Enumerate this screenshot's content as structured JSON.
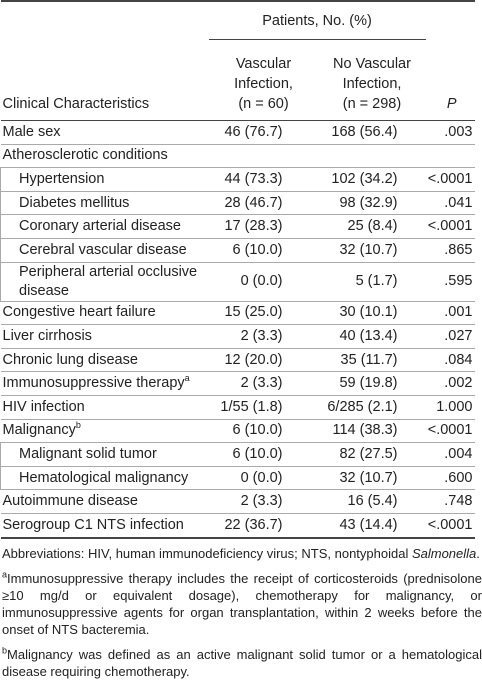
{
  "header": {
    "group_title": "Patients, No. (%)",
    "columns": [
      [
        "Clinical Characteristics"
      ],
      [
        "Vascular",
        "Infection,",
        "(n = 60)"
      ],
      [
        "No Vascular",
        "Infection,",
        "(n = 298)"
      ],
      [
        "P"
      ]
    ]
  },
  "table": {
    "rows": [
      {
        "label": "Male sex",
        "indent": false,
        "cells": [
          "46 (76.7)",
          "168 (56.4)",
          ".003"
        ]
      },
      {
        "label": "Atherosclerotic conditions",
        "indent": false,
        "cells": []
      },
      {
        "label": "Hypertension",
        "indent": true,
        "cells": [
          "44 (73.3)",
          "102 (34.2)",
          "<.0001"
        ]
      },
      {
        "label": "Diabetes mellitus",
        "indent": true,
        "cells": [
          "28 (46.7)",
          "98 (32.9)",
          ".041"
        ]
      },
      {
        "label": "Coronary arterial disease",
        "indent": true,
        "cells": [
          "17 (28.3)",
          "25 (8.4)",
          "<.0001"
        ]
      },
      {
        "label": "Cerebral vascular disease",
        "indent": true,
        "cells": [
          "6 (10.0)",
          "32 (10.7)",
          ".865"
        ]
      },
      {
        "label": "Peripheral arterial occlusive disease",
        "indent": true,
        "cells": [
          "0 (0.0)",
          "5 (1.7)",
          ".595"
        ]
      },
      {
        "label": "Congestive heart failure",
        "indent": false,
        "cells": [
          "15 (25.0)",
          "30 (10.1)",
          ".001"
        ]
      },
      {
        "label": "Liver cirrhosis",
        "indent": false,
        "cells": [
          "2 (3.3)",
          "40 (13.4)",
          ".027"
        ]
      },
      {
        "label": "Chronic lung disease",
        "indent": false,
        "cells": [
          "12 (20.0)",
          "35 (11.7)",
          ".084"
        ]
      },
      {
        "label": "Immunosuppressive therapy",
        "sup": "a",
        "indent": false,
        "cells": [
          "2 (3.3)",
          "59 (19.8)",
          ".002"
        ]
      },
      {
        "label": "HIV infection",
        "indent": false,
        "cells": [
          "1/55 (1.8)",
          "6/285 (2.1)",
          "1.000"
        ]
      },
      {
        "label": "Malignancy",
        "sup": "b",
        "indent": false,
        "cells": [
          "6 (10.0)",
          "114 (38.3)",
          "<.0001"
        ]
      },
      {
        "label": "Malignant solid tumor",
        "indent": true,
        "cells": [
          "6 (10.0)",
          "82 (27.5)",
          ".004"
        ]
      },
      {
        "label": "Hematological malignancy",
        "indent": true,
        "cells": [
          "0 (0.0)",
          "32 (10.7)",
          ".600"
        ]
      },
      {
        "label": "Autoimmune disease",
        "indent": false,
        "cells": [
          "2 (3.3)",
          "16 (5.4)",
          ".748"
        ]
      },
      {
        "label": "Serogroup C1 NTS infection",
        "indent": false,
        "cells": [
          "22 (36.7)",
          "43 (14.4)",
          "<.0001"
        ]
      }
    ]
  },
  "footnotes": {
    "abbreviations": [
      "Abbreviations: HIV, human immunodeficiency virus; NTS, nontyphoidal ",
      "Salmonella",
      "."
    ],
    "notes": [
      {
        "marker": "a",
        "text": "Immunosuppressive therapy includes the receipt of corticosteroids (prednisolone ≥10 mg/d or equivalent dosage), chemotherapy for malignancy, or immunosuppressive agents for organ transplantation, within 2 weeks before the onset of NTS bacteremia."
      },
      {
        "marker": "b",
        "text": "Malignancy was defined as an active malignant solid tumor or a hematological disease requiring chemotherapy."
      }
    ]
  }
}
